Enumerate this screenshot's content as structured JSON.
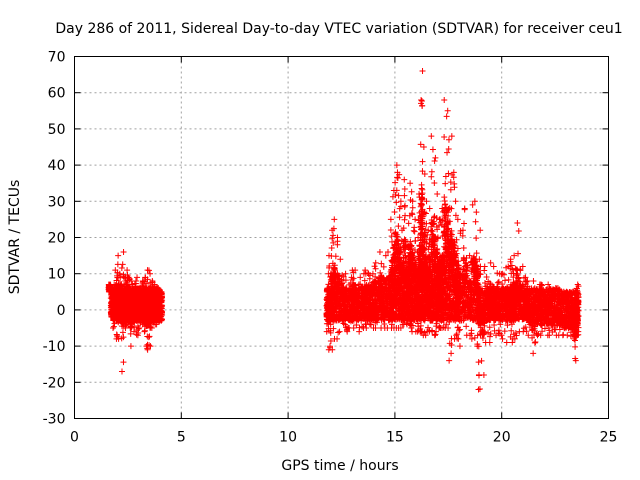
{
  "chart_data": {
    "type": "scatter",
    "title": "Day 286 of 2011, Sidereal Day-to-day VTEC variation (SDTVAR) for receiver ceu1",
    "xlabel": "GPS time / hours",
    "ylabel": "SDTVAR / TECUs",
    "xlim": [
      0,
      25
    ],
    "ylim": [
      -30,
      70
    ],
    "xticks": [
      0,
      5,
      10,
      15,
      20,
      25
    ],
    "yticks": [
      -30,
      -20,
      -10,
      0,
      10,
      20,
      30,
      40,
      50,
      60,
      70
    ],
    "grid": true,
    "marker": "+",
    "colors": {
      "series": "#ff0000",
      "grid": "#a0a0a0",
      "axes": "#000000"
    },
    "series": [
      {
        "name": "SDTVAR",
        "x": [
          1.6,
          1.7,
          1.8,
          1.9,
          2.0,
          2.1,
          2.2,
          2.3,
          2.4,
          2.5,
          2.6,
          2.7,
          2.8,
          2.9,
          3.0,
          3.1,
          3.2,
          3.3,
          3.4,
          3.5,
          3.6,
          3.7,
          3.8,
          3.9,
          4.0,
          11.8,
          11.9,
          12.0,
          12.1,
          12.2,
          12.4,
          12.6,
          12.8,
          13.0,
          13.2,
          13.4,
          13.6,
          13.8,
          14.0,
          14.2,
          14.4,
          14.6,
          14.8,
          14.9,
          15.0,
          15.1,
          15.2,
          15.3,
          15.4,
          15.5,
          15.6,
          15.7,
          15.8,
          15.9,
          16.0,
          16.1,
          16.2,
          16.25,
          16.3,
          16.4,
          16.5,
          16.6,
          16.7,
          16.8,
          16.9,
          17.0,
          17.1,
          17.2,
          17.3,
          17.4,
          17.5,
          17.6,
          17.7,
          17.8,
          17.9,
          18.0,
          18.2,
          18.4,
          18.6,
          18.8,
          18.9,
          19.0,
          19.2,
          19.4,
          19.6,
          19.8,
          20.0,
          20.2,
          20.4,
          20.5,
          20.6,
          20.8,
          21.0,
          21.2,
          21.4,
          21.6,
          21.8,
          22.0,
          22.2,
          22.4,
          22.6,
          22.8,
          23.0,
          23.2,
          23.4,
          23.5
        ],
        "y_min": [
          5,
          -2,
          -5,
          -8,
          -8,
          -3,
          -17,
          -5,
          -4,
          -4,
          -10,
          -6,
          -3,
          -7,
          -5,
          -4,
          -6,
          -10,
          -11,
          -10,
          -5,
          -4,
          -4,
          -3,
          -3,
          -6,
          -11,
          -11,
          -8,
          -8,
          -6,
          -6,
          -5,
          -5,
          -6,
          -5,
          -5,
          -5,
          -5,
          -5,
          -5,
          -5,
          -5,
          -5,
          -5,
          -5,
          -5,
          -4,
          -4,
          -4,
          -4,
          -5,
          -6,
          -6,
          -6,
          -6,
          -6,
          -6,
          -7,
          -7,
          -6,
          -6,
          -6,
          -7,
          -6,
          -5,
          -5,
          -5,
          -5,
          -5,
          -14,
          -12,
          -8,
          -7,
          -8,
          -10,
          -7,
          -7,
          -8,
          -10,
          -22,
          -18,
          -9,
          -9,
          -7,
          -7,
          -8,
          -9,
          -9,
          -8,
          -8,
          -6,
          -6,
          -7,
          -12,
          -7,
          -7,
          -7,
          -7,
          -7,
          -7,
          -7,
          -7,
          -8,
          -14,
          -7
        ],
        "y_max": [
          7,
          6,
          7,
          11,
          15,
          10,
          16,
          9,
          11,
          9,
          8,
          7,
          8,
          9,
          6,
          8,
          8,
          9,
          11,
          10,
          8,
          7,
          6,
          6,
          5,
          10,
          15,
          22,
          25,
          20,
          14,
          10,
          9,
          11,
          9,
          10,
          11,
          10,
          13,
          16,
          15,
          16,
          25,
          33,
          40,
          38,
          30,
          22,
          36,
          18,
          26,
          35,
          30,
          25,
          20,
          32,
          58,
          66,
          45,
          30,
          22,
          28,
          48,
          42,
          32,
          25,
          25,
          28,
          58,
          55,
          47,
          48,
          38,
          30,
          25,
          22,
          28,
          15,
          30,
          27,
          22,
          12,
          12,
          13,
          12,
          10,
          10,
          12,
          14,
          15,
          24,
          12,
          9,
          8,
          8,
          7,
          7,
          7,
          6,
          6,
          6,
          5,
          5,
          5,
          5,
          7
        ]
      }
    ]
  }
}
